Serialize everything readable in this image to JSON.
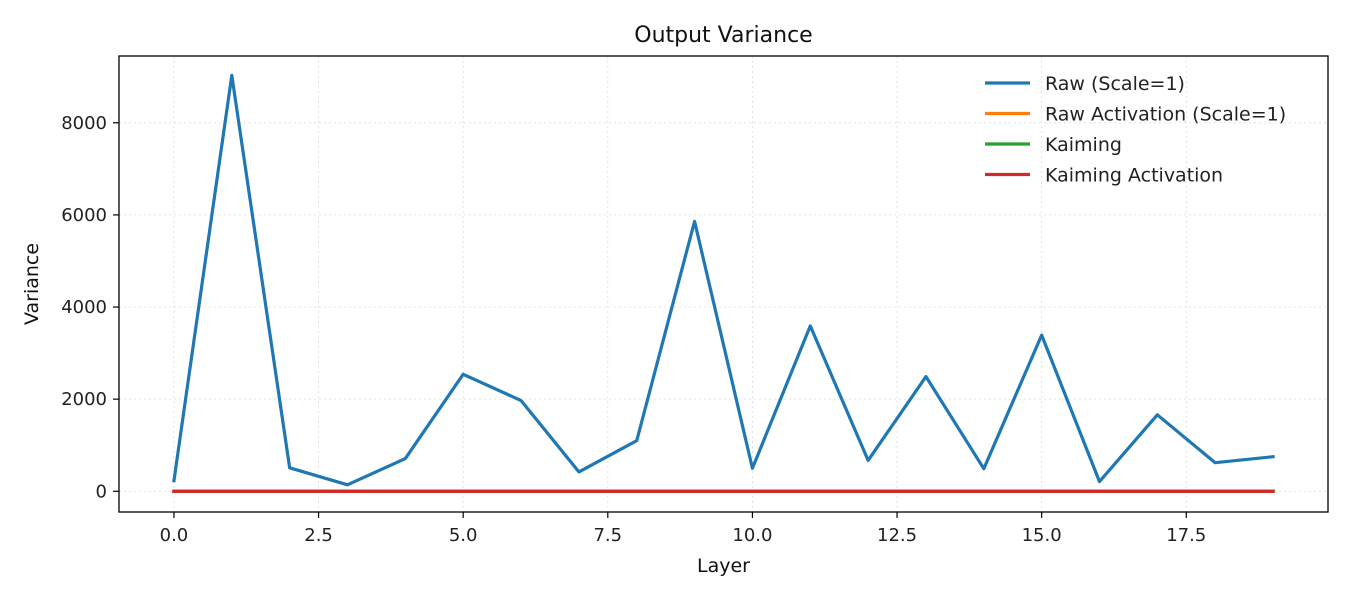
{
  "chart_data": {
    "type": "line",
    "title": "Output Variance",
    "xlabel": "Layer",
    "ylabel": "Variance",
    "xlim": [
      -0.95,
      19.95
    ],
    "ylim": [
      -450,
      9450
    ],
    "xticks": [
      0.0,
      2.5,
      5.0,
      7.5,
      10.0,
      12.5,
      15.0,
      17.5
    ],
    "xtick_labels": [
      "0.0",
      "2.5",
      "5.0",
      "7.5",
      "10.0",
      "12.5",
      "15.0",
      "17.5"
    ],
    "yticks": [
      0,
      2000,
      4000,
      6000,
      8000
    ],
    "ytick_labels": [
      "0",
      "2000",
      "4000",
      "6000",
      "8000"
    ],
    "grid": true,
    "legend_position": "top-right",
    "x": [
      0,
      1,
      2,
      3,
      4,
      5,
      6,
      7,
      8,
      9,
      10,
      11,
      12,
      13,
      14,
      15,
      16,
      17,
      18,
      19
    ],
    "series": [
      {
        "name": "Raw (Scale=1)",
        "color": "#1f77b4",
        "values": [
          230,
          9030,
          510,
          140,
          710,
          2540,
          1970,
          420,
          1100,
          5860,
          500,
          3590,
          670,
          2490,
          490,
          3390,
          210,
          1660,
          620,
          750
        ]
      },
      {
        "name": "Raw Activation (Scale=1)",
        "color": "#ff7f0e",
        "values": [
          1,
          1,
          1,
          1,
          1,
          1,
          1,
          1,
          1,
          1,
          1,
          1,
          1,
          1,
          1,
          1,
          1,
          1,
          1,
          1
        ]
      },
      {
        "name": "Kaiming",
        "color": "#2ca02c",
        "values": [
          1,
          1,
          1,
          1,
          1,
          1,
          1,
          1,
          1,
          1,
          1,
          1,
          1,
          1,
          1,
          1,
          1,
          1,
          1,
          1
        ]
      },
      {
        "name": "Kaiming Activation",
        "color": "#d62728",
        "values": [
          1,
          1,
          1,
          1,
          1,
          1,
          1,
          1,
          1,
          1,
          1,
          1,
          1,
          1,
          1,
          1,
          1,
          1,
          1,
          1
        ]
      }
    ]
  }
}
